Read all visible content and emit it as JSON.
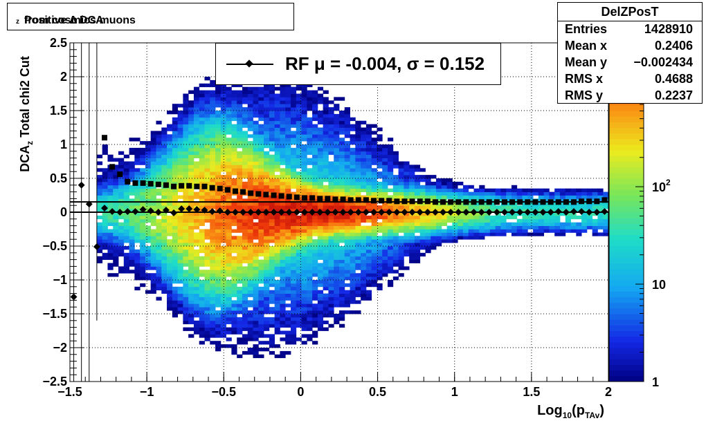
{
  "title": {
    "prefix": "Positive ∆ DCA",
    "sub": "z",
    "suffix": " from cosmics muons"
  },
  "stats": {
    "name": "DelZPosT",
    "rows": [
      {
        "label": "Entries",
        "value": "1428910"
      },
      {
        "label": "Mean x",
        "value": "0.2406"
      },
      {
        "label": "Mean y",
        "value": "−0.002434"
      },
      {
        "label": "RMS x",
        "value": "0.4688"
      },
      {
        "label": "RMS y",
        "value": "0.2237"
      }
    ]
  },
  "legend": {
    "text": "RF μ = -0.004, σ =   0.152"
  },
  "axes": {
    "ylabel_pre": "DCA",
    "ylabel_sub": "z",
    "ylabel_post": "   Total chi2 Cut",
    "xlabel_pre": "Log",
    "xlabel_sub1": "10",
    "xlabel_mid": "(p",
    "xlabel_sub2": "TAv",
    "xlabel_post": ")"
  },
  "chart_data": {
    "type": "heatmap",
    "xlim": [
      -1.5,
      2
    ],
    "ylim": [
      -2.5,
      2.5
    ],
    "x_ticks": [
      {
        "v": -1.5,
        "t": "−1.5"
      },
      {
        "v": -1,
        "t": "−1"
      },
      {
        "v": -0.5,
        "t": "−0.5"
      },
      {
        "v": 0,
        "t": "0"
      },
      {
        "v": 0.5,
        "t": "0.5"
      },
      {
        "v": 1,
        "t": "1"
      },
      {
        "v": 1.5,
        "t": "1.5"
      },
      {
        "v": 2,
        "t": "2"
      }
    ],
    "y_ticks": [
      {
        "v": 2.5,
        "t": "2.5"
      },
      {
        "v": 2,
        "t": "2"
      },
      {
        "v": 1.5,
        "t": "1.5"
      },
      {
        "v": 1,
        "t": "1"
      },
      {
        "v": 0.5,
        "t": "0.5"
      },
      {
        "v": 0,
        "t": "0"
      },
      {
        "v": -0.5,
        "t": "−0.5"
      },
      {
        "v": -1,
        "t": "−1"
      },
      {
        "v": -1.5,
        "t": "−1.5"
      },
      {
        "v": -2,
        "t": "−2"
      },
      {
        "v": -2.5,
        "t": "−2.5"
      }
    ],
    "grid": true,
    "z_scale": "log",
    "colorbar_ticks": [
      {
        "v": 1,
        "t": "1"
      },
      {
        "v": 10,
        "t": "10"
      },
      {
        "v": 100,
        "t": "10",
        "sup": "2"
      }
    ],
    "colorbar_max": 3000,
    "fit_lines": [
      0.152,
      0.0
    ],
    "series": [
      {
        "marker": "square",
        "x": [
          -1.275,
          -1.225,
          -1.175,
          -1.125,
          -1.075,
          -1.025,
          -0.975,
          -0.925,
          -0.875,
          -0.825,
          -0.775,
          -0.725,
          -0.675,
          -0.625,
          -0.575,
          -0.525,
          -0.475,
          -0.425,
          -0.375,
          -0.325,
          -0.275,
          -0.225,
          -0.175,
          -0.125,
          -0.075,
          -0.025,
          0.025,
          0.075,
          0.125,
          0.175,
          0.225,
          0.275,
          0.325,
          0.375,
          0.425,
          0.475,
          0.525,
          0.575,
          0.625,
          0.675,
          0.725,
          0.775,
          0.825,
          0.875,
          0.925,
          0.975,
          1.025,
          1.075,
          1.125,
          1.175,
          1.225,
          1.275,
          1.325,
          1.375,
          1.425,
          1.475,
          1.525,
          1.575,
          1.625,
          1.675,
          1.725,
          1.775,
          1.825,
          1.875,
          1.925,
          1.975
        ],
        "y": [
          1.1,
          0.67,
          0.56,
          0.45,
          0.43,
          0.43,
          0.42,
          0.41,
          0.4,
          0.38,
          0.39,
          0.39,
          0.38,
          0.38,
          0.36,
          0.35,
          0.33,
          0.31,
          0.3,
          0.28,
          0.27,
          0.26,
          0.25,
          0.24,
          0.23,
          0.22,
          0.21,
          0.21,
          0.2,
          0.2,
          0.19,
          0.19,
          0.18,
          0.18,
          0.18,
          0.17,
          0.17,
          0.17,
          0.16,
          0.16,
          0.16,
          0.16,
          0.16,
          0.15,
          0.15,
          0.15,
          0.15,
          0.15,
          0.15,
          0.15,
          0.15,
          0.15,
          0.15,
          0.15,
          0.15,
          0.15,
          0.15,
          0.15,
          0.15,
          0.15,
          0.15,
          0.15,
          0.16,
          0.16,
          0.16,
          0.18
        ]
      },
      {
        "marker": "diamond",
        "x": [
          -1.475,
          -1.425,
          -1.375,
          -1.325,
          -1.275,
          -1.225,
          -1.175,
          -1.125,
          -1.075,
          -1.025,
          -0.975,
          -0.925,
          -0.875,
          -0.825,
          -0.775,
          -0.725,
          -0.675,
          -0.625,
          -0.575,
          -0.525,
          -0.475,
          -0.425,
          -0.375,
          -0.325,
          -0.275,
          -0.225,
          -0.175,
          -0.125,
          -0.075,
          -0.025,
          0.025,
          0.075,
          0.125,
          0.175,
          0.225,
          0.275,
          0.325,
          0.375,
          0.425,
          0.475,
          0.525,
          0.575,
          0.625,
          0.675,
          0.725,
          0.775,
          0.825,
          0.875,
          0.925,
          0.975,
          1.025,
          1.075,
          1.125,
          1.175,
          1.225,
          1.275,
          1.325,
          1.375,
          1.425,
          1.475,
          1.525,
          1.575,
          1.625,
          1.675,
          1.725,
          1.775,
          1.825,
          1.875,
          1.925,
          1.975
        ],
        "y": [
          -1.25,
          0.4,
          0.12,
          -0.51,
          0.06,
          0.01,
          0.0,
          0.01,
          0.01,
          0.04,
          0.02,
          0.0,
          0.03,
          -0.01,
          0.05,
          0.05,
          0.04,
          0.03,
          0.01,
          0.02,
          0.0,
          0.0,
          0.0,
          0.0,
          0.0,
          0.0,
          0.0,
          0.0,
          0.0,
          0.0,
          0.0,
          0.0,
          0.0,
          0.0,
          0.0,
          0.0,
          0.0,
          0.0,
          0.0,
          0.0,
          0.0,
          0.0,
          0.0,
          0.0,
          0.0,
          0.0,
          0.0,
          0.0,
          0.0,
          0.0,
          0.0,
          0.0,
          0.0,
          0.0,
          0.0,
          0.0,
          0.0,
          0.0,
          0.0,
          0.0,
          0.0,
          0.0,
          0.0,
          0.01,
          0.0,
          0.01,
          0.01,
          0.0,
          0.0,
          0.01
        ]
      }
    ]
  }
}
